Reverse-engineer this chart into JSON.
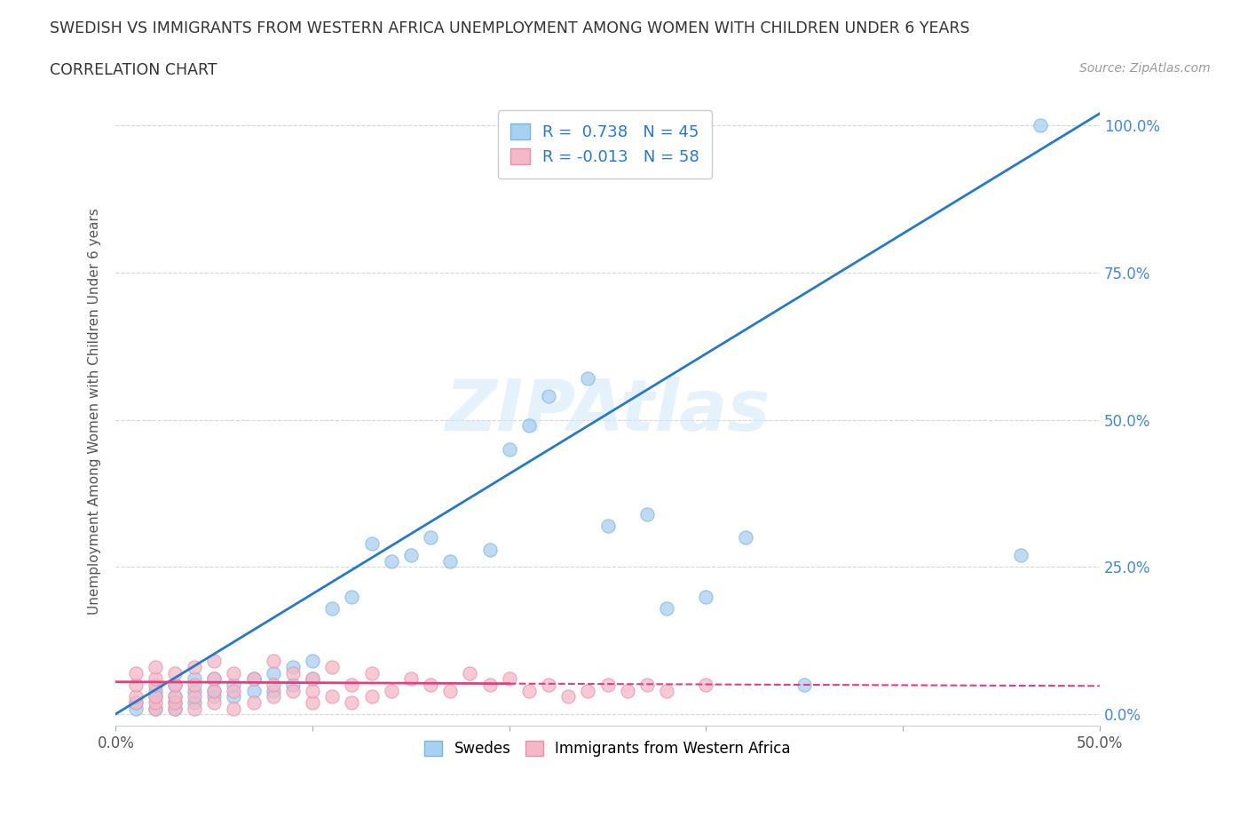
{
  "title_line1": "SWEDISH VS IMMIGRANTS FROM WESTERN AFRICA UNEMPLOYMENT AMONG WOMEN WITH CHILDREN UNDER 6 YEARS",
  "title_line2": "CORRELATION CHART",
  "source": "Source: ZipAtlas.com",
  "ylabel": "Unemployment Among Women with Children Under 6 years",
  "xlim": [
    0.0,
    0.5
  ],
  "ylim": [
    -0.02,
    1.05
  ],
  "xticks": [
    0.0,
    0.1,
    0.2,
    0.3,
    0.4,
    0.5
  ],
  "xticklabels": [
    "0.0%",
    "",
    "",
    "",
    "",
    "50.0%"
  ],
  "yticks": [
    0.0,
    0.25,
    0.5,
    0.75,
    1.0
  ],
  "yticklabels": [
    "0.0%",
    "25.0%",
    "50.0%",
    "75.0%",
    "100.0%"
  ],
  "blue_R": 0.738,
  "blue_N": 45,
  "pink_R": -0.013,
  "pink_N": 58,
  "blue_scatter_color": "#a8d0f0",
  "blue_scatter_edge": "#7ab5e0",
  "pink_scatter_color": "#f5b8c8",
  "pink_scatter_edge": "#e890a8",
  "blue_line_color": "#2878c8",
  "pink_line_color": "#e04080",
  "legend_label_blue": "Swedes",
  "legend_label_pink": "Immigrants from Western Africa",
  "watermark": "ZIPAtlas",
  "background_color": "#ffffff",
  "blue_points_x": [
    0.01,
    0.01,
    0.02,
    0.02,
    0.02,
    0.03,
    0.03,
    0.03,
    0.03,
    0.04,
    0.04,
    0.04,
    0.05,
    0.05,
    0.05,
    0.06,
    0.06,
    0.07,
    0.07,
    0.08,
    0.08,
    0.09,
    0.09,
    0.1,
    0.1,
    0.11,
    0.12,
    0.13,
    0.14,
    0.15,
    0.16,
    0.17,
    0.19,
    0.2,
    0.21,
    0.22,
    0.24,
    0.25,
    0.27,
    0.28,
    0.3,
    0.32,
    0.35,
    0.46,
    0.47
  ],
  "blue_points_y": [
    0.01,
    0.02,
    0.01,
    0.03,
    0.04,
    0.01,
    0.02,
    0.03,
    0.05,
    0.02,
    0.04,
    0.06,
    0.03,
    0.04,
    0.06,
    0.03,
    0.05,
    0.04,
    0.06,
    0.04,
    0.07,
    0.05,
    0.08,
    0.06,
    0.09,
    0.18,
    0.2,
    0.29,
    0.26,
    0.27,
    0.3,
    0.26,
    0.28,
    0.45,
    0.49,
    0.54,
    0.57,
    0.32,
    0.34,
    0.18,
    0.2,
    0.3,
    0.05,
    0.27,
    1.0
  ],
  "pink_points_x": [
    0.01,
    0.01,
    0.01,
    0.01,
    0.02,
    0.02,
    0.02,
    0.02,
    0.02,
    0.02,
    0.03,
    0.03,
    0.03,
    0.03,
    0.03,
    0.04,
    0.04,
    0.04,
    0.04,
    0.05,
    0.05,
    0.05,
    0.05,
    0.06,
    0.06,
    0.06,
    0.07,
    0.07,
    0.08,
    0.08,
    0.08,
    0.09,
    0.09,
    0.1,
    0.1,
    0.1,
    0.11,
    0.11,
    0.12,
    0.12,
    0.13,
    0.13,
    0.14,
    0.15,
    0.16,
    0.17,
    0.18,
    0.19,
    0.2,
    0.21,
    0.22,
    0.23,
    0.24,
    0.25,
    0.26,
    0.27,
    0.28,
    0.3
  ],
  "pink_points_y": [
    0.02,
    0.03,
    0.05,
    0.07,
    0.01,
    0.02,
    0.03,
    0.05,
    0.06,
    0.08,
    0.01,
    0.02,
    0.03,
    0.05,
    0.07,
    0.01,
    0.03,
    0.05,
    0.08,
    0.02,
    0.04,
    0.06,
    0.09,
    0.01,
    0.04,
    0.07,
    0.02,
    0.06,
    0.03,
    0.05,
    0.09,
    0.04,
    0.07,
    0.02,
    0.04,
    0.06,
    0.03,
    0.08,
    0.02,
    0.05,
    0.03,
    0.07,
    0.04,
    0.06,
    0.05,
    0.04,
    0.07,
    0.05,
    0.06,
    0.04,
    0.05,
    0.03,
    0.04,
    0.05,
    0.04,
    0.05,
    0.04,
    0.05
  ]
}
